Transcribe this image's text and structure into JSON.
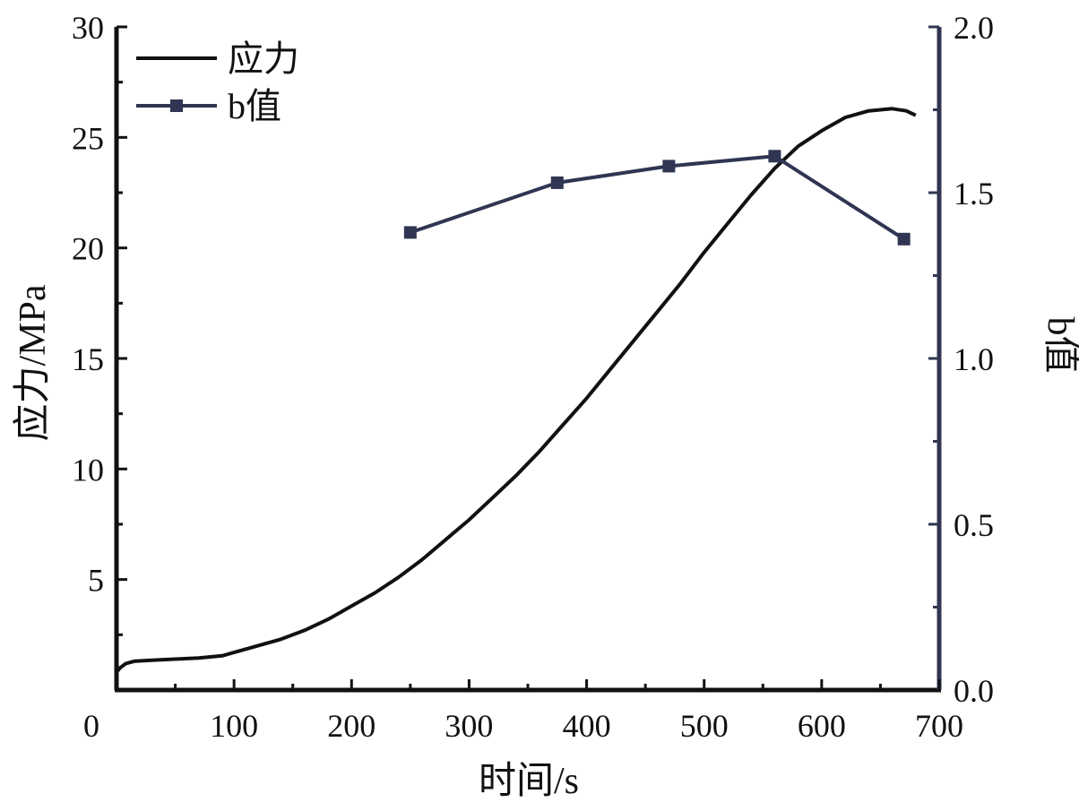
{
  "chart_data": {
    "type": "line",
    "xlabel": "时间/s",
    "ylabel_left": "应力/MPa",
    "ylabel_right": "b值",
    "xlim": [
      0,
      700
    ],
    "ylim_left": [
      0,
      30
    ],
    "ylim_right": [
      0,
      2.0
    ],
    "x_ticks": [
      0,
      100,
      200,
      300,
      400,
      500,
      600,
      700
    ],
    "x_tick_labels": [
      "0",
      "100",
      "200",
      "300",
      "400",
      "500",
      "600",
      "700"
    ],
    "y_left_ticks": [
      5,
      10,
      15,
      20,
      25,
      30
    ],
    "y_left_tick_labels": [
      "5",
      "10",
      "15",
      "20",
      "25",
      "30"
    ],
    "y_right_ticks": [
      0,
      0.5,
      1.0,
      1.5,
      2.0
    ],
    "y_right_tick_labels": [
      "0.0",
      "0.5",
      "1.0",
      "1.5",
      "2.0"
    ],
    "legend_position": "top-left",
    "colors": {
      "stress": "#111111",
      "b_value": "#2f3552"
    },
    "series": [
      {
        "name": "应力",
        "axis": "left",
        "marker": "none",
        "x": [
          0,
          3,
          8,
          15,
          30,
          50,
          70,
          90,
          100,
          120,
          140,
          160,
          180,
          200,
          220,
          240,
          260,
          280,
          300,
          320,
          340,
          360,
          380,
          400,
          420,
          440,
          460,
          480,
          500,
          520,
          540,
          560,
          580,
          600,
          620,
          640,
          660,
          672,
          676,
          680
        ],
        "y": [
          0.8,
          1.0,
          1.2,
          1.3,
          1.35,
          1.4,
          1.45,
          1.55,
          1.7,
          2.0,
          2.3,
          2.7,
          3.2,
          3.8,
          4.4,
          5.1,
          5.9,
          6.8,
          7.7,
          8.7,
          9.7,
          10.8,
          12.0,
          13.2,
          14.5,
          15.8,
          17.1,
          18.4,
          19.8,
          21.1,
          22.4,
          23.6,
          24.6,
          25.3,
          25.9,
          26.2,
          26.3,
          26.2,
          26.1,
          26.0
        ]
      },
      {
        "name": "b值",
        "axis": "right",
        "marker": "square",
        "x": [
          250,
          375,
          470,
          560,
          670
        ],
        "y": [
          1.38,
          1.53,
          1.58,
          1.61,
          1.36
        ]
      }
    ]
  }
}
